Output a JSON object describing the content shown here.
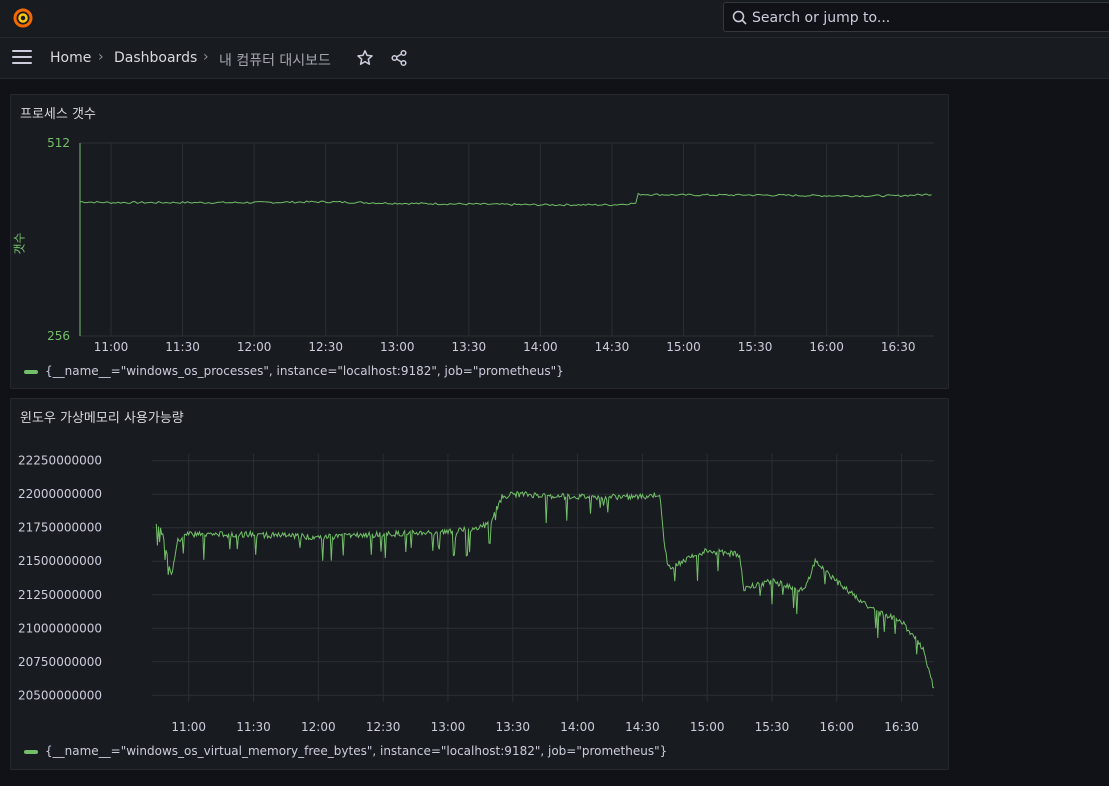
{
  "topbar": {
    "search_placeholder": "Search or jump to...",
    "logo_icon": "grafana-logo-icon"
  },
  "breadcrumb": {
    "home": "Home",
    "dashboards": "Dashboards",
    "current": "내 컴퓨터 대시보드",
    "separator": "›",
    "star_icon": "star-icon",
    "share_icon": "share-icon"
  },
  "panels": [
    {
      "title": "프로세스 갯수",
      "legend": "{__name__=\"windows_os_processes\", instance=\"localhost:9182\", job=\"prometheus\"}"
    },
    {
      "title": "윈도우 가상메모리 사용가능량",
      "legend": "{__name__=\"windows_os_virtual_memory_free_bytes\", instance=\"localhost:9182\", job=\"prometheus\"}"
    }
  ],
  "colors": {
    "series": "#73bf69",
    "background": "#111217",
    "panel": "#181b1f",
    "grid": "#2c2f35"
  },
  "chart_data": [
    {
      "type": "line",
      "title": "프로세스 갯수",
      "ylabel": "갯수",
      "ylim": [
        256,
        512
      ],
      "y_ticks": [
        "512",
        "256"
      ],
      "x_ticks": [
        "11:00",
        "11:30",
        "12:00",
        "12:30",
        "13:00",
        "13:30",
        "14:00",
        "14:30",
        "15:00",
        "15:30",
        "16:00",
        "16:30"
      ],
      "grid": true,
      "legend_position": "bottom-left",
      "series": [
        {
          "name": "{__name__=\"windows_os_processes\", instance=\"localhost:9182\", job=\"prometheus\"}",
          "x": [
            "10:47",
            "11:00",
            "11:30",
            "12:00",
            "12:30",
            "13:00",
            "13:30",
            "14:00",
            "14:30",
            "14:40",
            "14:41",
            "15:00",
            "15:30",
            "16:00",
            "16:30",
            "16:44"
          ],
          "values": [
            434,
            433,
            433,
            433,
            434,
            432,
            431,
            430,
            430,
            432,
            444,
            443,
            443,
            442,
            442,
            444
          ]
        }
      ]
    },
    {
      "type": "line",
      "title": "윈도우 가상메모리 사용가능량",
      "ylim": [
        20450000000,
        22300000000
      ],
      "y_ticks": [
        "22250000000",
        "22000000000",
        "21750000000",
        "21500000000",
        "21250000000",
        "21000000000",
        "20750000000",
        "20500000000"
      ],
      "x_ticks": [
        "11:00",
        "11:30",
        "12:00",
        "12:30",
        "13:00",
        "13:30",
        "14:00",
        "14:30",
        "15:00",
        "15:30",
        "16:00",
        "16:30"
      ],
      "grid": true,
      "legend_position": "bottom-left",
      "series": [
        {
          "name": "{__name__=\"windows_os_virtual_memory_free_bytes\", instance=\"localhost:9182\", job=\"prometheus\"}",
          "x": [
            "10:45",
            "10:48",
            "10:52",
            "10:55",
            "11:00",
            "11:30",
            "12:00",
            "12:30",
            "13:00",
            "13:15",
            "13:20",
            "13:25",
            "13:30",
            "14:00",
            "14:30",
            "14:38",
            "14:40",
            "14:42",
            "15:00",
            "15:15",
            "15:17",
            "15:30",
            "15:45",
            "15:50",
            "16:00",
            "16:15",
            "16:30",
            "16:40",
            "16:45"
          ],
          "values": [
            21800000000,
            21700000000,
            21400000000,
            21650000000,
            21700000000,
            21700000000,
            21680000000,
            21700000000,
            21720000000,
            21750000000,
            21800000000,
            21980000000,
            22000000000,
            21980000000,
            21980000000,
            22000000000,
            21650000000,
            21450000000,
            21580000000,
            21550000000,
            21300000000,
            21350000000,
            21280000000,
            21500000000,
            21350000000,
            21150000000,
            21050000000,
            20850000000,
            20550000000
          ]
        }
      ]
    }
  ]
}
